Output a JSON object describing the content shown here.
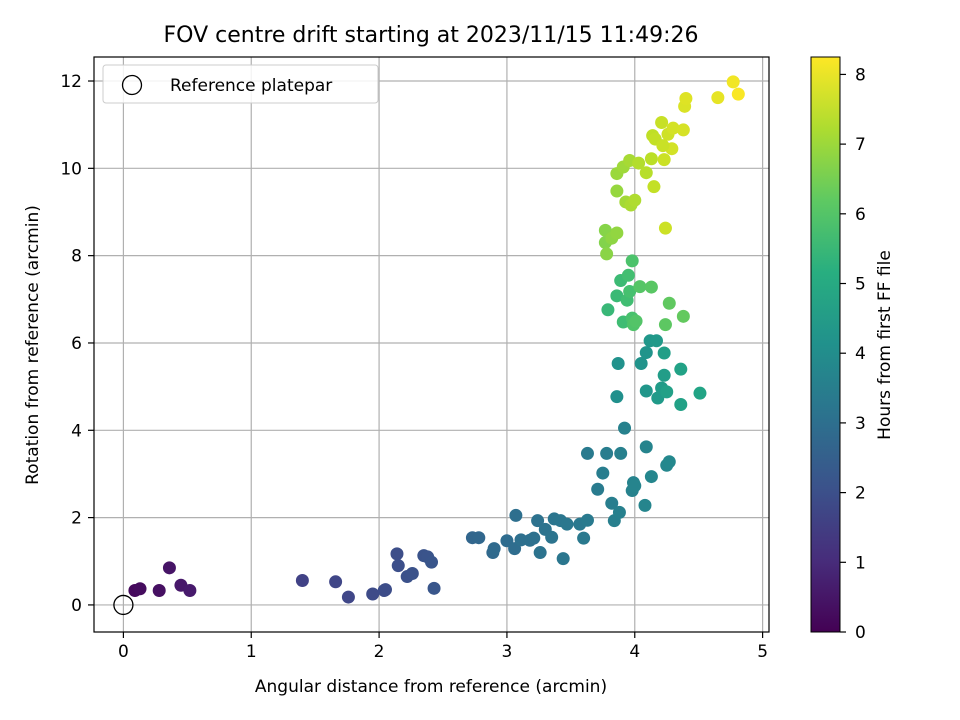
{
  "chart_data": {
    "type": "scatter",
    "title": "FOV centre drift starting at 2023/11/15 11:49:26",
    "xlabel": "Angular distance from reference (arcmin)",
    "ylabel": "Rotation from reference (arcmin)",
    "xlim": [
      -0.23,
      5.05
    ],
    "ylim": [
      -0.62,
      12.55
    ],
    "xticks": [
      0,
      1,
      2,
      3,
      4,
      5
    ],
    "yticks": [
      0,
      2,
      4,
      6,
      8,
      10,
      12
    ],
    "grid": true,
    "legend": {
      "placement": "top-left",
      "entries": [
        {
          "label": "Reference platepar",
          "marker": "open-circle"
        }
      ]
    },
    "reference_point": {
      "x": 0,
      "y": 0
    },
    "colorbar": {
      "label": "Hours from first FF file",
      "colormap": "viridis",
      "range": [
        0,
        8.25
      ],
      "ticks": [
        0,
        1,
        2,
        3,
        4,
        5,
        6,
        7,
        8
      ]
    },
    "points": [
      [
        0.09,
        0.33,
        0.2
      ],
      [
        0.13,
        0.37,
        0.25
      ],
      [
        0.28,
        0.33,
        0.35
      ],
      [
        0.36,
        0.85,
        0.45
      ],
      [
        0.45,
        0.45,
        0.55
      ],
      [
        0.52,
        0.33,
        0.6
      ],
      [
        1.4,
        0.56,
        1.6
      ],
      [
        1.66,
        0.53,
        1.7
      ],
      [
        1.76,
        0.18,
        1.75
      ],
      [
        1.95,
        0.25,
        1.85
      ],
      [
        2.04,
        0.33,
        1.9
      ],
      [
        2.05,
        0.35,
        1.92
      ],
      [
        2.14,
        1.17,
        1.95
      ],
      [
        2.15,
        0.9,
        2.0
      ],
      [
        2.22,
        0.65,
        2.05
      ],
      [
        2.26,
        0.72,
        2.08
      ],
      [
        2.35,
        1.13,
        2.12
      ],
      [
        2.38,
        1.1,
        2.15
      ],
      [
        2.41,
        0.98,
        2.18
      ],
      [
        2.43,
        0.38,
        2.2
      ],
      [
        2.73,
        1.54,
        2.7
      ],
      [
        2.78,
        1.54,
        2.75
      ],
      [
        2.89,
        1.2,
        2.8
      ],
      [
        2.9,
        1.29,
        2.85
      ],
      [
        3.0,
        1.47,
        2.9
      ],
      [
        3.06,
        1.29,
        2.95
      ],
      [
        3.07,
        2.05,
        3.0
      ],
      [
        3.11,
        1.49,
        3.02
      ],
      [
        3.18,
        1.48,
        3.05
      ],
      [
        3.21,
        1.53,
        3.08
      ],
      [
        3.24,
        1.93,
        3.1
      ],
      [
        3.26,
        1.2,
        3.12
      ],
      [
        3.3,
        1.73,
        3.15
      ],
      [
        3.35,
        1.55,
        3.18
      ],
      [
        3.37,
        1.97,
        3.2
      ],
      [
        3.42,
        1.93,
        3.22
      ],
      [
        3.44,
        1.06,
        3.25
      ],
      [
        3.47,
        1.85,
        3.28
      ],
      [
        3.57,
        1.85,
        3.3
      ],
      [
        3.6,
        1.53,
        3.32
      ],
      [
        3.63,
        1.94,
        3.35
      ],
      [
        3.63,
        3.47,
        3.38
      ],
      [
        3.71,
        2.65,
        3.4
      ],
      [
        3.75,
        3.02,
        3.45
      ],
      [
        3.78,
        3.47,
        3.48
      ],
      [
        3.82,
        2.33,
        3.5
      ],
      [
        3.84,
        1.93,
        3.52
      ],
      [
        3.88,
        2.12,
        3.55
      ],
      [
        3.89,
        3.47,
        3.58
      ],
      [
        3.92,
        4.05,
        3.6
      ],
      [
        3.98,
        2.62,
        3.62
      ],
      [
        3.99,
        2.8,
        3.65
      ],
      [
        4.0,
        2.73,
        3.68
      ],
      [
        4.09,
        3.62,
        3.7
      ],
      [
        4.08,
        2.28,
        3.72
      ],
      [
        4.13,
        2.94,
        3.75
      ],
      [
        4.25,
        3.2,
        3.8
      ],
      [
        4.27,
        3.28,
        3.82
      ],
      [
        3.86,
        4.77,
        4.1
      ],
      [
        3.87,
        5.53,
        4.15
      ],
      [
        4.05,
        5.53,
        4.2
      ],
      [
        4.09,
        5.78,
        4.25
      ],
      [
        4.09,
        4.9,
        4.3
      ],
      [
        4.12,
        6.05,
        4.35
      ],
      [
        4.17,
        6.05,
        4.4
      ],
      [
        4.18,
        4.74,
        4.45
      ],
      [
        4.21,
        4.97,
        4.5
      ],
      [
        4.23,
        5.26,
        4.55
      ],
      [
        4.23,
        5.77,
        4.6
      ],
      [
        4.25,
        4.88,
        4.65
      ],
      [
        4.36,
        4.59,
        4.7
      ],
      [
        4.36,
        5.4,
        4.75
      ],
      [
        4.51,
        4.85,
        4.8
      ],
      [
        3.79,
        6.76,
        5.5
      ],
      [
        3.86,
        7.08,
        5.55
      ],
      [
        3.89,
        7.43,
        5.6
      ],
      [
        3.91,
        6.48,
        5.65
      ],
      [
        3.94,
        6.98,
        5.7
      ],
      [
        3.95,
        7.55,
        5.75
      ],
      [
        3.96,
        7.18,
        5.8
      ],
      [
        3.98,
        6.57,
        5.85
      ],
      [
        3.98,
        7.88,
        5.9
      ],
      [
        3.99,
        6.42,
        5.95
      ],
      [
        4.01,
        6.5,
        6.0
      ],
      [
        4.04,
        7.29,
        6.05
      ],
      [
        4.13,
        7.28,
        6.1
      ],
      [
        4.24,
        6.42,
        6.15
      ],
      [
        4.27,
        6.91,
        6.2
      ],
      [
        4.38,
        6.61,
        6.25
      ],
      [
        3.77,
        8.3,
        6.7
      ],
      [
        3.77,
        8.58,
        6.75
      ],
      [
        3.78,
        8.04,
        6.8
      ],
      [
        3.82,
        8.4,
        6.85
      ],
      [
        3.86,
        8.52,
        6.9
      ],
      [
        3.86,
        9.48,
        6.95
      ],
      [
        3.86,
        9.88,
        7.0
      ],
      [
        3.91,
        10.03,
        7.05
      ],
      [
        3.93,
        9.23,
        7.1
      ],
      [
        3.96,
        10.18,
        7.15
      ],
      [
        3.97,
        9.16,
        7.2
      ],
      [
        4.0,
        9.27,
        7.25
      ],
      [
        4.03,
        10.12,
        7.3
      ],
      [
        4.09,
        9.9,
        7.35
      ],
      [
        4.13,
        10.22,
        7.4
      ],
      [
        4.14,
        10.75,
        7.45
      ],
      [
        4.15,
        9.58,
        7.5
      ],
      [
        4.21,
        11.05,
        7.55
      ],
      [
        4.23,
        10.2,
        7.6
      ],
      [
        4.24,
        8.63,
        7.62
      ],
      [
        4.26,
        10.78,
        7.65
      ],
      [
        4.29,
        10.45,
        7.7
      ],
      [
        4.3,
        10.92,
        7.72
      ],
      [
        4.38,
        10.88,
        7.75
      ],
      [
        4.39,
        11.42,
        7.8
      ],
      [
        4.4,
        11.6,
        7.85
      ],
      [
        4.65,
        11.62,
        7.95
      ],
      [
        4.77,
        11.98,
        8.1
      ],
      [
        4.81,
        11.7,
        8.2
      ],
      [
        4.16,
        10.67,
        7.5
      ],
      [
        4.22,
        10.52,
        7.58
      ]
    ]
  }
}
